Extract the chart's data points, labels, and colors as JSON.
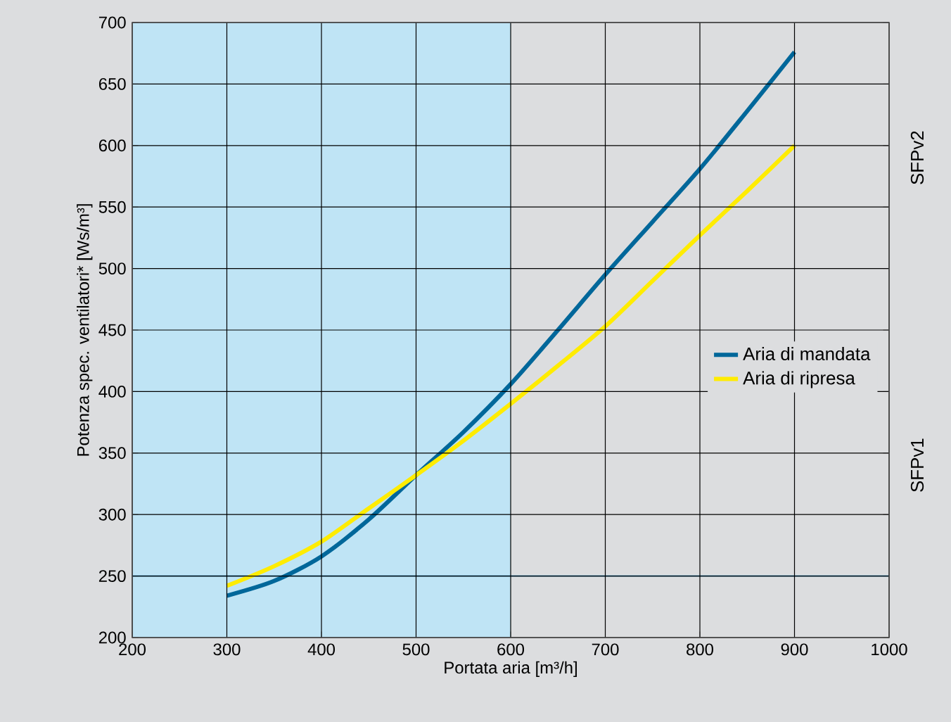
{
  "chart_data": {
    "type": "line",
    "xlabel": "Portata aria [m³/h]",
    "ylabel": "Potenza spec. ventilatori* [Ws/m³]",
    "x": [
      300,
      350,
      400,
      450,
      500,
      550,
      600,
      650,
      700,
      750,
      800,
      850,
      900
    ],
    "series": [
      {
        "name": "Aria di mandata",
        "color": "#00679a",
        "values": [
          234,
          246,
          266,
          296,
          332,
          367,
          406,
          450,
          495,
          538,
          581,
          628,
          676
        ]
      },
      {
        "name": "Aria di ripresa",
        "color": "#ffec00",
        "values": [
          242,
          258,
          278,
          305,
          332,
          360,
          390,
          421,
          453,
          490,
          527,
          563,
          600
        ]
      }
    ],
    "xlim": [
      200,
      1000
    ],
    "ylim": [
      200,
      700
    ],
    "xticks": [
      200,
      300,
      400,
      500,
      600,
      700,
      800,
      900,
      1000
    ],
    "yticks": [
      200,
      250,
      300,
      350,
      400,
      450,
      500,
      550,
      600,
      650,
      700
    ],
    "grid": true,
    "legend": "right",
    "marker": "none",
    "line_style": "solid",
    "bands": [
      {
        "axis": "x",
        "from": 200,
        "to": 600,
        "color": "#bfe4f5"
      }
    ],
    "ref_lines": [
      {
        "axis": "y",
        "value": 250,
        "color": "#4a9cc7"
      }
    ],
    "annotations": [
      "SFPv2",
      "SFPv1"
    ]
  }
}
